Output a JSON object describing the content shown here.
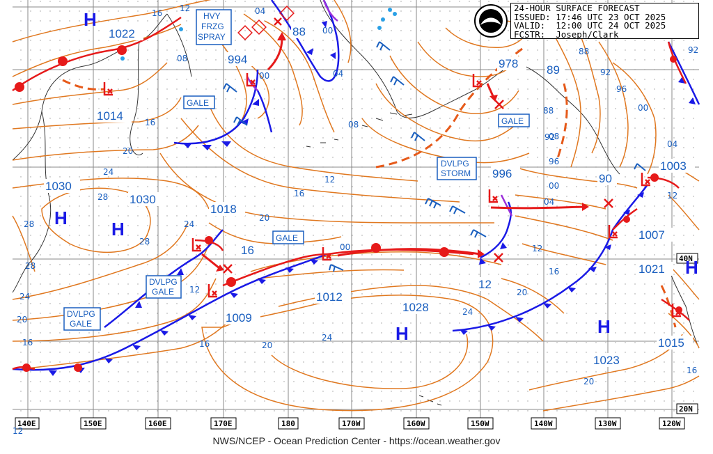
{
  "header": {
    "line1": "24-HOUR SURFACE FORECAST",
    "line2": "ISSUED: 17:46 UTC 23 OCT 2025",
    "line3": "VALID:  12:00 UTC 24 OCT 2025",
    "line4": "FCSTR:  Joseph/Clark",
    "logo_text": "NOAA"
  },
  "footer": "NWS/NCEP - Ocean Prediction Center - https://ocean.weather.gov",
  "colors": {
    "isobar": "#e07820",
    "cold_front": "#1a1ae6",
    "warm_front": "#e61a1a",
    "label_blue": "#1a5fbf",
    "grid": "#808080"
  },
  "longitude_labels": [
    "140E",
    "150E",
    "160E",
    "170E",
    "180",
    "170W",
    "160W",
    "150W",
    "140W",
    "130W",
    "120W"
  ],
  "latitude_labels": [
    "40N",
    "20N"
  ],
  "pressure_centers": [
    {
      "type": "H",
      "value": "1022"
    },
    {
      "type": "L",
      "value": "1014"
    },
    {
      "type": "H",
      "value": "1030"
    },
    {
      "type": "H",
      "value": "1030"
    },
    {
      "type": "L",
      "value": "994"
    },
    {
      "type": "L",
      "value": "1018"
    },
    {
      "type": "L",
      "value": "1009"
    },
    {
      "type": "L",
      "value": "1012"
    },
    {
      "type": "H",
      "value": "1028"
    },
    {
      "type": "L",
      "value": "978"
    },
    {
      "type": "L",
      "value": "996"
    },
    {
      "type": "L",
      "value": "1003"
    },
    {
      "type": "L",
      "value": "1007"
    },
    {
      "type": "H",
      "value": "1021"
    },
    {
      "type": "H",
      "value": "1023"
    },
    {
      "type": "L",
      "value": "1015"
    }
  ],
  "small_values": [
    "88",
    "89",
    "16",
    "90",
    "12"
  ],
  "warning_boxes": [
    {
      "lines": [
        "HVY",
        "FRZG",
        "SPRAY"
      ]
    },
    {
      "lines": [
        "GALE"
      ]
    },
    {
      "lines": [
        "GALE"
      ]
    },
    {
      "lines": [
        "GALE"
      ]
    },
    {
      "lines": [
        "DVLPG",
        "STORM"
      ]
    },
    {
      "lines": [
        "DVLPG",
        "GALE"
      ]
    },
    {
      "lines": [
        "DVLPG",
        "GALE"
      ]
    }
  ],
  "isobar_labels": [
    "16",
    "12",
    "04",
    "08",
    "00",
    "00",
    "04",
    "08",
    "16",
    "20",
    "24",
    "28",
    "28",
    "28",
    "20",
    "24",
    "16",
    "12",
    "08",
    "04",
    "00",
    "88",
    "92",
    "96",
    "00",
    "04",
    "12",
    "16",
    "20",
    "24",
    "20",
    "16",
    "24",
    "12",
    "20",
    "16",
    "20",
    "12",
    "16",
    "12",
    "92",
    "96",
    "88",
    "92",
    "00",
    "28",
    "24"
  ]
}
